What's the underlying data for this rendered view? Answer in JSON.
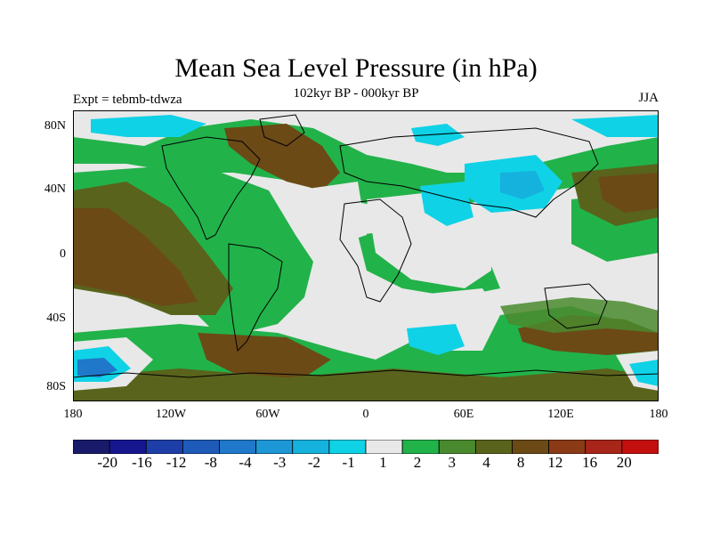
{
  "title": "Mean Sea Level Pressure (in hPa)",
  "subtitle": "102kyr BP - 000kyr BP",
  "left_label": "Expt = tebmb-tdwza",
  "right_label": "JJA",
  "lat_labels": [
    "80N",
    "40N",
    "0",
    "40S",
    "80S"
  ],
  "lon_labels": [
    "180",
    "120W",
    "60W",
    "0",
    "60E",
    "120E",
    "180"
  ],
  "legend": {
    "labels": [
      "-20",
      "-16",
      "-12",
      "-8",
      "-4",
      "-3",
      "-2",
      "-1",
      "1",
      "2",
      "3",
      "4",
      "8",
      "12",
      "16",
      "20"
    ],
    "colors": [
      "#1a1a6b",
      "#16178f",
      "#1d3ea6",
      "#1e5bb8",
      "#1f78c9",
      "#1e97d6",
      "#16b2de",
      "#0fd2e6",
      "#e8e8e8",
      "#22b24a",
      "#4a8a2e",
      "#59631c",
      "#6b4a16",
      "#8b3a16",
      "#a8251a",
      "#c40f0f"
    ]
  },
  "map_colors": {
    "neutral": "#e8e8e8",
    "green": "#22b24a",
    "dark_green": "#4a8a2e",
    "olive": "#59631c",
    "brown": "#6b4a16",
    "cyan": "#0fd2e6",
    "light_blue": "#16b2de",
    "blue": "#1e97d6",
    "deep_blue": "#1f78c9"
  }
}
